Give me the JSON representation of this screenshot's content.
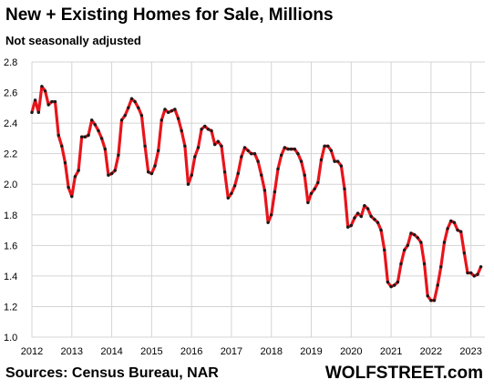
{
  "chart_data": {
    "type": "line",
    "title": "New + Existing Homes for Sale, Millions",
    "subtitle": "Not seasonally adjusted",
    "xlabel": "",
    "ylabel": "",
    "ylim": [
      1.0,
      2.8
    ],
    "yticks": [
      "1.0",
      "1.2",
      "1.4",
      "1.6",
      "1.8",
      "2.0",
      "2.2",
      "2.4",
      "2.6",
      "2.8"
    ],
    "xlim": [
      2012.0,
      2023.35
    ],
    "xticks": [
      "2012",
      "2013",
      "2014",
      "2015",
      "2016",
      "2017",
      "2018",
      "2019",
      "2020",
      "2021",
      "2022",
      "2023"
    ],
    "grid": true,
    "line_color": "#e8141b",
    "marker_color": "#1a1a1a",
    "series": [
      {
        "x_start": 2012.0,
        "x_step_months": 1,
        "values": [
          2.47,
          2.55,
          2.47,
          2.64,
          2.61,
          2.52,
          2.54,
          2.54,
          2.32,
          2.25,
          2.14,
          1.98,
          1.92,
          2.05,
          2.09,
          2.31,
          2.31,
          2.32,
          2.42,
          2.39,
          2.35,
          2.3,
          2.23,
          2.06,
          2.07,
          2.09,
          2.19,
          2.42,
          2.45,
          2.5,
          2.56,
          2.54,
          2.5,
          2.45,
          2.25,
          2.08,
          2.07,
          2.12,
          2.22,
          2.42,
          2.49,
          2.47,
          2.48,
          2.49,
          2.43,
          2.35,
          2.25,
          2.0,
          2.06,
          2.18,
          2.24,
          2.36,
          2.38,
          2.36,
          2.35,
          2.26,
          2.28,
          2.25,
          2.08,
          1.91,
          1.94,
          1.99,
          2.07,
          2.18,
          2.24,
          2.22,
          2.2,
          2.2,
          2.15,
          2.06,
          1.96,
          1.75,
          1.8,
          1.95,
          2.1,
          2.19,
          2.24,
          2.23,
          2.23,
          2.23,
          2.2,
          2.15,
          2.06,
          1.88,
          1.94,
          1.97,
          2.01,
          2.16,
          2.25,
          2.25,
          2.22,
          2.15,
          2.15,
          2.12,
          1.97,
          1.72,
          1.73,
          1.78,
          1.81,
          1.79,
          1.86,
          1.84,
          1.79,
          1.77,
          1.75,
          1.7,
          1.57,
          1.36,
          1.33,
          1.34,
          1.36,
          1.48,
          1.57,
          1.6,
          1.68,
          1.67,
          1.65,
          1.62,
          1.48,
          1.27,
          1.24,
          1.24,
          1.34,
          1.46,
          1.62,
          1.71,
          1.76,
          1.75,
          1.7,
          1.69,
          1.55,
          1.42,
          1.42,
          1.4,
          1.41,
          1.46
        ]
      }
    ]
  },
  "footer": {
    "source": "Sources: Census Bureau, NAR",
    "brand": "WOLFSTREET.com"
  }
}
